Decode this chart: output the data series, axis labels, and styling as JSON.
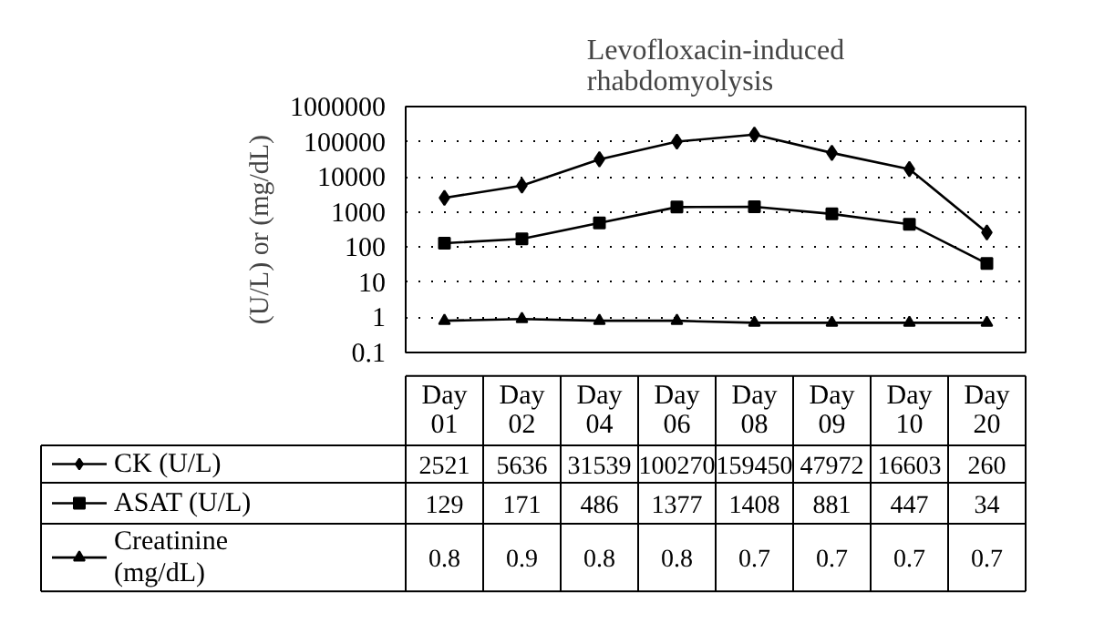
{
  "chart_data": {
    "type": "line",
    "title": "Levofloxacin-induced rhabdomyolysis",
    "ylabel": "(U/L) or (mg/dL)",
    "categories": [
      "Day 01",
      "Day 02",
      "Day 04",
      "Day 06",
      "Day 08",
      "Day 09",
      "Day 10",
      "Day 20"
    ],
    "series": [
      {
        "name": "CK (U/L)",
        "color": "#000000",
        "marker": "diamond",
        "values": [
          2521,
          5636,
          31539,
          100270,
          159450,
          47972,
          16603,
          260
        ]
      },
      {
        "name": "ASAT (U/L)",
        "color": "#000000",
        "marker": "square",
        "values": [
          129,
          171,
          486,
          1377,
          1408,
          881,
          447,
          34
        ]
      },
      {
        "name": "Creatinine (mg/dL)",
        "color": "#000000",
        "marker": "triangle",
        "values": [
          0.8,
          0.9,
          0.8,
          0.8,
          0.7,
          0.7,
          0.7,
          0.7
        ]
      }
    ],
    "log": "y",
    "ylim": [
      0.1,
      1000000
    ],
    "yticks": [
      0.1,
      1,
      10,
      100,
      1000,
      10000,
      100000,
      1000000
    ],
    "grid": "y",
    "legend": "bottom",
    "data_labels": true,
    "line_style": "solid"
  }
}
